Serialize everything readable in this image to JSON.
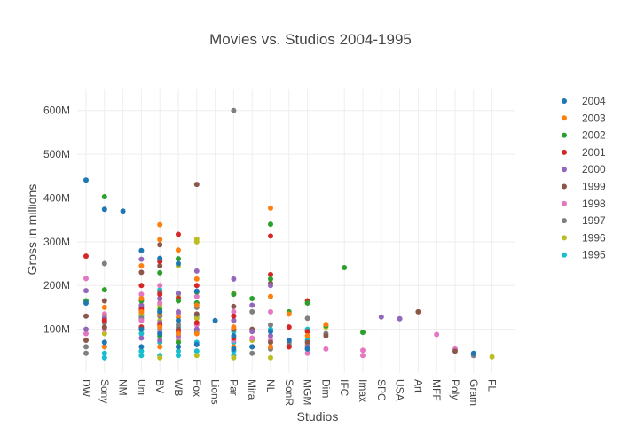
{
  "chart_data": {
    "type": "scatter",
    "title": "Movies vs. Studios 2004-1995",
    "xlabel": "Studios",
    "ylabel": "Gross in millions",
    "categories": [
      "DW",
      "Sony",
      "NM",
      "Uni",
      "BV",
      "WB",
      "Fox",
      "Lions",
      "Par",
      "Mira",
      "NL",
      "SonR",
      "MGM",
      "Dim",
      "IFC",
      "Imax",
      "SPC",
      "USA",
      "Art",
      "MFF",
      "Poly",
      "Gram",
      "FL"
    ],
    "ylim": [
      0,
      650
    ],
    "yticks": [
      100,
      200,
      300,
      400,
      500,
      600
    ],
    "ytick_labels": [
      "100M",
      "200M",
      "300M",
      "400M",
      "500M",
      "600M"
    ],
    "grid": true,
    "legend_position": "right",
    "series": [
      {
        "name": "2004",
        "color": "#1f77b4",
        "points": [
          [
            "DW",
            441
          ],
          [
            "DW",
            160
          ],
          [
            "Sony",
            374
          ],
          [
            "Sony",
            70
          ],
          [
            "NM",
            370
          ],
          [
            "Uni",
            280
          ],
          [
            "Uni",
            100
          ],
          [
            "Uni",
            60
          ],
          [
            "BV",
            262
          ],
          [
            "BV",
            140
          ],
          [
            "BV",
            90
          ],
          [
            "WB",
            250
          ],
          [
            "WB",
            120
          ],
          [
            "WB",
            60
          ],
          [
            "Fox",
            187
          ],
          [
            "Fox",
            65
          ],
          [
            "Lions",
            120
          ],
          [
            "Par",
            85
          ],
          [
            "Par",
            55
          ],
          [
            "Mira",
            60
          ],
          [
            "NL",
            95
          ],
          [
            "SonR",
            75
          ],
          [
            "MGM",
            55
          ],
          [
            "Gram",
            45
          ]
        ]
      },
      {
        "name": "2003",
        "color": "#ff7f0e",
        "points": [
          [
            "Sony",
            150
          ],
          [
            "Sony",
            60
          ],
          [
            "Uni",
            245
          ],
          [
            "Uni",
            170
          ],
          [
            "Uni",
            140
          ],
          [
            "BV",
            339
          ],
          [
            "BV",
            305
          ],
          [
            "BV",
            135
          ],
          [
            "BV",
            105
          ],
          [
            "BV",
            60
          ],
          [
            "WB",
            281
          ],
          [
            "WB",
            127
          ],
          [
            "WB",
            90
          ],
          [
            "Fox",
            215
          ],
          [
            "Fox",
            155
          ],
          [
            "Fox",
            90
          ],
          [
            "Par",
            105
          ],
          [
            "Par",
            60
          ],
          [
            "NL",
            377
          ],
          [
            "NL",
            175
          ],
          [
            "NL",
            60
          ],
          [
            "SonR",
            135
          ],
          [
            "MGM",
            85
          ],
          [
            "Dim",
            111
          ]
        ]
      },
      {
        "name": "2002",
        "color": "#2ca02c",
        "points": [
          [
            "DW",
            165
          ],
          [
            "Sony",
            403
          ],
          [
            "Sony",
            190
          ],
          [
            "Uni",
            165
          ],
          [
            "Uni",
            100
          ],
          [
            "BV",
            229
          ],
          [
            "BV",
            145
          ],
          [
            "BV",
            85
          ],
          [
            "WB",
            261
          ],
          [
            "WB",
            165
          ],
          [
            "WB",
            70
          ],
          [
            "Fox",
            185
          ],
          [
            "Fox",
            160
          ],
          [
            "Par",
            180
          ],
          [
            "Mira",
            170
          ],
          [
            "NL",
            340
          ],
          [
            "NL",
            215
          ],
          [
            "SonR",
            140
          ],
          [
            "MGM",
            160
          ],
          [
            "Dim",
            108
          ],
          [
            "IFC",
            241
          ],
          [
            "Imax",
            93
          ]
        ]
      },
      {
        "name": "2001",
        "color": "#d62728",
        "points": [
          [
            "DW",
            267
          ],
          [
            "Sony",
            120
          ],
          [
            "Uni",
            200
          ],
          [
            "Uni",
            145
          ],
          [
            "Uni",
            105
          ],
          [
            "BV",
            255
          ],
          [
            "BV",
            180
          ],
          [
            "BV",
            110
          ],
          [
            "WB",
            317
          ],
          [
            "WB",
            170
          ],
          [
            "WB",
            95
          ],
          [
            "Fox",
            200
          ],
          [
            "Fox",
            115
          ],
          [
            "Par",
            130
          ],
          [
            "Par",
            80
          ],
          [
            "NL",
            313
          ],
          [
            "NL",
            225
          ],
          [
            "SonR",
            105
          ],
          [
            "SonR",
            60
          ],
          [
            "MGM",
            165
          ],
          [
            "MGM",
            95
          ]
        ]
      },
      {
        "name": "2000",
        "color": "#9467bd",
        "points": [
          [
            "DW",
            188
          ],
          [
            "DW",
            100
          ],
          [
            "Sony",
            125
          ],
          [
            "Uni",
            260
          ],
          [
            "Uni",
            155
          ],
          [
            "Uni",
            80
          ],
          [
            "BV",
            170
          ],
          [
            "BV",
            115
          ],
          [
            "BV",
            75
          ],
          [
            "WB",
            182
          ],
          [
            "WB",
            140
          ],
          [
            "WB",
            85
          ],
          [
            "Fox",
            233
          ],
          [
            "Fox",
            160
          ],
          [
            "Fox",
            100
          ],
          [
            "Par",
            215
          ],
          [
            "Par",
            120
          ],
          [
            "Mira",
            155
          ],
          [
            "Mira",
            95
          ],
          [
            "NL",
            200
          ],
          [
            "NL",
            85
          ],
          [
            "MGM",
            60
          ],
          [
            "SPC",
            128
          ],
          [
            "USA",
            124
          ]
        ]
      },
      {
        "name": "1999",
        "color": "#8c564b",
        "points": [
          [
            "DW",
            130
          ],
          [
            "DW",
            75
          ],
          [
            "Sony",
            165
          ],
          [
            "Sony",
            105
          ],
          [
            "Uni",
            230
          ],
          [
            "Uni",
            150
          ],
          [
            "BV",
            293
          ],
          [
            "BV",
            245
          ],
          [
            "BV",
            170
          ],
          [
            "WB",
            170
          ],
          [
            "WB",
            100
          ],
          [
            "Fox",
            431
          ],
          [
            "Fox",
            135
          ],
          [
            "Par",
            152
          ],
          [
            "Par",
            100
          ],
          [
            "Mira",
            100
          ],
          [
            "Mira",
            60
          ],
          [
            "NL",
            205
          ],
          [
            "NL",
            70
          ],
          [
            "SonR",
            60
          ],
          [
            "MGM",
            70
          ],
          [
            "Dim",
            85
          ],
          [
            "Art",
            140
          ],
          [
            "Poly",
            50
          ]
        ]
      },
      {
        "name": "1998",
        "color": "#e377c2",
        "points": [
          [
            "DW",
            216
          ],
          [
            "DW",
            90
          ],
          [
            "Sony",
            135
          ],
          [
            "Sony",
            100
          ],
          [
            "Uni",
            180
          ],
          [
            "Uni",
            120
          ],
          [
            "BV",
            200
          ],
          [
            "BV",
            160
          ],
          [
            "BV",
            95
          ],
          [
            "WB",
            135
          ],
          [
            "WB",
            80
          ],
          [
            "Fox",
            175
          ],
          [
            "Fox",
            110
          ],
          [
            "Par",
            140
          ],
          [
            "Par",
            75
          ],
          [
            "Mira",
            80
          ],
          [
            "NL",
            140
          ],
          [
            "NL",
            75
          ],
          [
            "MGM",
            45
          ],
          [
            "Dim",
            55
          ],
          [
            "Imax",
            52
          ],
          [
            "Imax",
            40
          ],
          [
            "MFF",
            88
          ],
          [
            "Poly",
            55
          ]
        ]
      },
      {
        "name": "1997",
        "color": "#7f7f7f",
        "points": [
          [
            "DW",
            60
          ],
          [
            "DW",
            45
          ],
          [
            "Sony",
            250
          ],
          [
            "Sony",
            115
          ],
          [
            "Uni",
            170
          ],
          [
            "Uni",
            125
          ],
          [
            "BV",
            185
          ],
          [
            "BV",
            130
          ],
          [
            "WB",
            110
          ],
          [
            "WB",
            60
          ],
          [
            "Fox",
            150
          ],
          [
            "Par",
            600
          ],
          [
            "Par",
            120
          ],
          [
            "Mira",
            140
          ],
          [
            "Mira",
            45
          ],
          [
            "NL",
            110
          ],
          [
            "NL",
            55
          ],
          [
            "SonR",
            70
          ],
          [
            "MGM",
            125
          ],
          [
            "Dim",
            90
          ],
          [
            "Gram",
            40
          ]
        ]
      },
      {
        "name": "1996",
        "color": "#bcbd22",
        "points": [
          [
            "Sony",
            130
          ],
          [
            "Sony",
            90
          ],
          [
            "Uni",
            135
          ],
          [
            "Uni",
            100
          ],
          [
            "BV",
            155
          ],
          [
            "BV",
            120
          ],
          [
            "BV",
            90
          ],
          [
            "BV",
            35
          ],
          [
            "WB",
            245
          ],
          [
            "WB",
            175
          ],
          [
            "WB",
            75
          ],
          [
            "Fox",
            306
          ],
          [
            "Fox",
            300
          ],
          [
            "Fox",
            125
          ],
          [
            "Fox",
            40
          ],
          [
            "Par",
            182
          ],
          [
            "Par",
            100
          ],
          [
            "Par",
            35
          ],
          [
            "Mira",
            75
          ],
          [
            "NL",
            35
          ],
          [
            "MGM",
            65
          ],
          [
            "Dim",
            105
          ],
          [
            "FL",
            37
          ]
        ]
      },
      {
        "name": "1995",
        "color": "#17becf",
        "points": [
          [
            "Sony",
            60
          ],
          [
            "Sony",
            45
          ],
          [
            "Sony",
            35
          ],
          [
            "Uni",
            130
          ],
          [
            "Uni",
            90
          ],
          [
            "Uni",
            50
          ],
          [
            "Uni",
            40
          ],
          [
            "BV",
            190
          ],
          [
            "BV",
            140
          ],
          [
            "BV",
            100
          ],
          [
            "BV",
            70
          ],
          [
            "BV",
            40
          ],
          [
            "WB",
            182
          ],
          [
            "WB",
            135
          ],
          [
            "WB",
            105
          ],
          [
            "WB",
            70
          ],
          [
            "WB",
            50
          ],
          [
            "WB",
            40
          ],
          [
            "Fox",
            160
          ],
          [
            "Fox",
            130
          ],
          [
            "Fox",
            95
          ],
          [
            "Fox",
            70
          ],
          [
            "Fox",
            50
          ],
          [
            "Par",
            95
          ],
          [
            "Par",
            70
          ],
          [
            "Par",
            50
          ],
          [
            "Par",
            40
          ],
          [
            "NL",
            100
          ],
          [
            "SonR",
            65
          ],
          [
            "MGM",
            100
          ],
          [
            "MGM",
            75
          ],
          [
            "MGM",
            55
          ],
          [
            "Gram",
            42
          ]
        ]
      }
    ]
  }
}
